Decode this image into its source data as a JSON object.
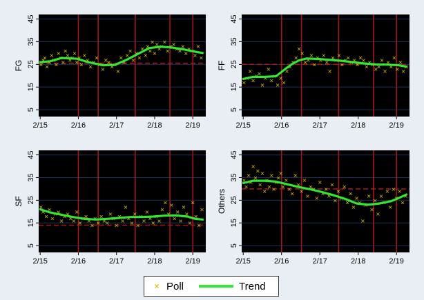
{
  "colors": {
    "background": "#e8eef3",
    "panel": "#000000",
    "gridline": "#1f2f5a",
    "trend": "#33e633",
    "poll": "#e0c418",
    "dates": "#a4161c",
    "reference": "#a4161c"
  },
  "legend": {
    "poll_label": "Poll",
    "trend_label": "Trend",
    "poll_marker": "×"
  },
  "chart_data": [
    {
      "type": "scatter",
      "ylabel": "FG",
      "ylim": [
        2,
        47
      ],
      "yticks": [
        5,
        15,
        25,
        35,
        45
      ],
      "xlim": [
        2015.0,
        2019.38
      ],
      "xticks": [
        2015.04,
        2016.04,
        2017.04,
        2018.04,
        2019.04
      ],
      "xticklabels": [
        "2/15",
        "2/16",
        "2/17",
        "2/18",
        "2/19"
      ],
      "vlines": [
        2016.04,
        2016.56,
        2017.53,
        2018.44,
        2019.04
      ],
      "reference_line": 25.5,
      "trend": {
        "x": [
          2015.04,
          2015.3,
          2015.6,
          2016.0,
          2016.3,
          2016.7,
          2017.0,
          2017.3,
          2017.6,
          2017.9,
          2018.2,
          2018.5,
          2018.8,
          2019.1,
          2019.3
        ],
        "y": [
          26.0,
          26.4,
          27.8,
          27.5,
          26.0,
          24.6,
          24.8,
          27.0,
          29.6,
          32.2,
          32.8,
          32.4,
          31.6,
          30.6,
          30.0
        ]
      },
      "polls": {
        "x": [
          2015.06,
          2015.12,
          2015.16,
          2015.22,
          2015.28,
          2015.34,
          2015.4,
          2015.46,
          2015.52,
          2015.58,
          2015.64,
          2015.7,
          2015.76,
          2015.82,
          2015.88,
          2015.94,
          2016.0,
          2016.06,
          2016.12,
          2016.2,
          2016.28,
          2016.36,
          2016.44,
          2016.52,
          2016.6,
          2016.68,
          2016.76,
          2016.84,
          2016.92,
          2017.0,
          2017.08,
          2017.16,
          2017.24,
          2017.32,
          2017.4,
          2017.48,
          2017.56,
          2017.64,
          2017.72,
          2017.8,
          2017.86,
          2017.92,
          2017.98,
          2018.04,
          2018.1,
          2018.16,
          2018.22,
          2018.3,
          2018.38,
          2018.46,
          2018.54,
          2018.62,
          2018.7,
          2018.78,
          2018.86,
          2018.94,
          2019.02,
          2019.1,
          2019.18,
          2019.26
        ],
        "y": [
          25,
          27,
          28,
          24,
          26,
          29,
          27,
          25,
          30,
          28,
          26,
          31,
          29,
          27,
          28,
          30,
          26,
          28,
          25,
          29,
          27,
          24,
          26,
          28,
          25,
          23,
          27,
          26,
          24,
          25,
          22,
          28,
          26,
          29,
          31,
          27,
          30,
          28,
          32,
          29,
          33,
          31,
          35,
          30,
          34,
          32,
          33,
          35,
          31,
          33,
          34,
          32,
          31,
          33,
          30,
          32,
          31,
          29,
          33,
          28
        ]
      }
    },
    {
      "type": "scatter",
      "ylabel": "FF",
      "ylim": [
        2,
        47
      ],
      "yticks": [
        5,
        15,
        25,
        35,
        45
      ],
      "xlim": [
        2015.0,
        2019.38
      ],
      "xticks": [
        2015.04,
        2016.04,
        2017.04,
        2018.04,
        2019.04
      ],
      "xticklabels": [
        "2/15",
        "2/16",
        "2/17",
        "2/18",
        "2/19"
      ],
      "vlines": [
        2016.04,
        2016.56,
        2017.53,
        2018.44,
        2019.04
      ],
      "reference_line": 25,
      "trend": {
        "x": [
          2015.04,
          2015.3,
          2015.6,
          2015.9,
          2016.1,
          2016.3,
          2016.5,
          2016.7,
          2017.0,
          2017.3,
          2017.6,
          2017.9,
          2018.2,
          2018.5,
          2018.8,
          2019.1,
          2019.3
        ],
        "y": [
          18.6,
          19.5,
          19.5,
          19.8,
          22.5,
          25.0,
          26.8,
          27.6,
          27.4,
          27.0,
          26.6,
          26.0,
          25.4,
          25.0,
          24.9,
          24.6,
          24.0
        ]
      },
      "polls": {
        "x": [
          2015.06,
          2015.14,
          2015.22,
          2015.3,
          2015.38,
          2015.46,
          2015.54,
          2015.62,
          2015.7,
          2015.78,
          2015.86,
          2015.94,
          2016.02,
          2016.1,
          2016.18,
          2016.26,
          2016.34,
          2016.42,
          2016.5,
          2016.58,
          2016.66,
          2016.74,
          2016.82,
          2016.9,
          2016.98,
          2017.06,
          2017.14,
          2017.22,
          2017.3,
          2017.38,
          2017.46,
          2017.54,
          2017.62,
          2017.7,
          2017.78,
          2017.86,
          2017.94,
          2018.02,
          2018.1,
          2018.18,
          2018.26,
          2018.34,
          2018.42,
          2018.5,
          2018.58,
          2018.66,
          2018.74,
          2018.82,
          2018.9,
          2018.98,
          2019.06,
          2019.14,
          2019.22,
          2019.3
        ],
        "y": [
          17,
          19,
          22,
          18,
          20,
          21,
          16,
          19,
          23,
          18,
          20,
          16,
          19,
          17,
          22,
          24,
          26,
          28,
          32,
          30,
          26,
          27,
          29,
          25,
          28,
          27,
          29,
          26,
          22,
          28,
          27,
          29,
          25,
          27,
          28,
          26,
          27,
          25,
          28,
          27,
          24,
          26,
          25,
          23,
          24,
          27,
          22,
          26,
          24,
          28,
          23,
          26,
          22,
          24
        ]
      }
    },
    {
      "type": "scatter",
      "ylabel": "SF",
      "ylim": [
        2,
        47
      ],
      "yticks": [
        5,
        15,
        25,
        35,
        45
      ],
      "xlim": [
        2015.0,
        2019.38
      ],
      "xticks": [
        2015.04,
        2016.04,
        2017.04,
        2018.04,
        2019.04
      ],
      "xticklabels": [
        "2/15",
        "2/16",
        "2/17",
        "2/18",
        "2/19"
      ],
      "vlines": [
        2016.04,
        2016.56,
        2017.53,
        2018.44,
        2019.04
      ],
      "reference_line": 14,
      "trend": {
        "x": [
          2015.04,
          2015.3,
          2015.6,
          2015.9,
          2016.2,
          2016.5,
          2016.8,
          2017.1,
          2017.4,
          2017.7,
          2018.0,
          2018.3,
          2018.6,
          2018.9,
          2019.1,
          2019.3
        ],
        "y": [
          21.0,
          19.6,
          18.6,
          17.6,
          16.8,
          16.5,
          16.8,
          17.2,
          17.6,
          17.6,
          17.8,
          18.2,
          18.3,
          17.8,
          16.8,
          16.5
        ]
      },
      "polls": {
        "x": [
          2015.06,
          2015.12,
          2015.2,
          2015.28,
          2015.36,
          2015.44,
          2015.52,
          2015.6,
          2015.68,
          2015.76,
          2015.84,
          2015.92,
          2016.0,
          2016.08,
          2016.16,
          2016.24,
          2016.32,
          2016.4,
          2016.48,
          2016.56,
          2016.64,
          2016.72,
          2016.8,
          2016.88,
          2016.96,
          2017.04,
          2017.12,
          2017.2,
          2017.28,
          2017.36,
          2017.44,
          2017.52,
          2017.6,
          2017.68,
          2017.76,
          2017.84,
          2017.92,
          2018.0,
          2018.08,
          2018.16,
          2018.24,
          2018.32,
          2018.4,
          2018.48,
          2018.56,
          2018.64,
          2018.72,
          2018.8,
          2018.88,
          2018.96,
          2019.04,
          2019.12,
          2019.2,
          2019.28
        ],
        "y": [
          22,
          20,
          18,
          21,
          17,
          19,
          20,
          16,
          18,
          19,
          17,
          16,
          20,
          15,
          17,
          18,
          16,
          14,
          17,
          15,
          18,
          16,
          15,
          19,
          17,
          14,
          18,
          16,
          22,
          17,
          15,
          19,
          14,
          18,
          16,
          20,
          17,
          15,
          18,
          16,
          21,
          24,
          19,
          23,
          17,
          20,
          16,
          22,
          19,
          15,
          24,
          18,
          14,
          21
        ]
      }
    },
    {
      "type": "scatter",
      "ylabel": "Others",
      "ylim": [
        2,
        47
      ],
      "yticks": [
        5,
        15,
        25,
        35,
        45
      ],
      "xlim": [
        2015.0,
        2019.38
      ],
      "xticks": [
        2015.04,
        2016.04,
        2017.04,
        2018.04,
        2019.04
      ],
      "xticklabels": [
        "2/15",
        "2/16",
        "2/17",
        "2/18",
        "2/19"
      ],
      "vlines": [
        2016.04,
        2016.56,
        2017.53,
        2018.44,
        2019.04
      ],
      "reference_line": 30,
      "trend": {
        "x": [
          2015.04,
          2015.3,
          2015.6,
          2015.9,
          2016.2,
          2016.5,
          2016.8,
          2017.1,
          2017.4,
          2017.7,
          2018.0,
          2018.3,
          2018.6,
          2018.9,
          2019.1,
          2019.3
        ],
        "y": [
          32.6,
          33.6,
          33.6,
          33.2,
          32.0,
          30.8,
          29.8,
          28.6,
          27.2,
          25.6,
          23.6,
          23.0,
          23.6,
          24.6,
          26.0,
          27.5
        ]
      },
      "polls": {
        "x": [
          2015.06,
          2015.12,
          2015.18,
          2015.24,
          2015.3,
          2015.36,
          2015.42,
          2015.48,
          2015.54,
          2015.6,
          2015.66,
          2015.72,
          2015.78,
          2015.84,
          2015.9,
          2015.96,
          2016.02,
          2016.08,
          2016.16,
          2016.24,
          2016.32,
          2016.4,
          2016.48,
          2016.56,
          2016.64,
          2016.72,
          2016.8,
          2016.88,
          2016.96,
          2017.04,
          2017.12,
          2017.2,
          2017.28,
          2017.36,
          2017.44,
          2017.52,
          2017.6,
          2017.68,
          2017.76,
          2017.84,
          2017.92,
          2018.0,
          2018.08,
          2018.16,
          2018.24,
          2018.32,
          2018.4,
          2018.48,
          2018.56,
          2018.64,
          2018.72,
          2018.8,
          2018.88,
          2018.96,
          2019.04,
          2019.12,
          2019.2,
          2019.28
        ],
        "y": [
          34,
          31,
          36,
          33,
          40,
          35,
          38,
          32,
          37,
          29,
          34,
          31,
          36,
          30,
          33,
          35,
          37,
          31,
          34,
          30,
          28,
          36,
          32,
          29,
          34,
          27,
          31,
          30,
          26,
          33,
          28,
          30,
          27,
          32,
          25,
          29,
          26,
          31,
          24,
          28,
          22,
          26,
          24,
          16,
          23,
          27,
          21,
          25,
          19,
          27,
          24,
          29,
          22,
          30,
          26,
          29,
          24,
          27
        ]
      }
    }
  ]
}
